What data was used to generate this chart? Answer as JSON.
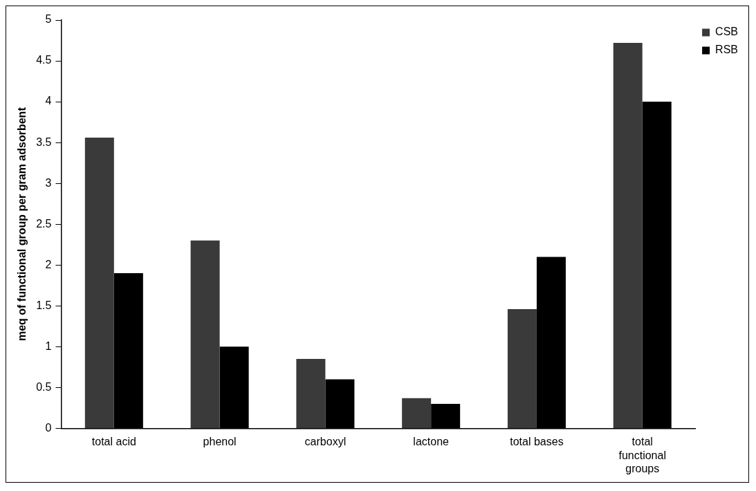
{
  "chart_data": {
    "type": "bar",
    "ylabel": "meq of functional group per gram adsorbent",
    "categories": [
      "total acid",
      "phenol",
      "carboxyl",
      "lactone",
      "total bases",
      "total functional groups"
    ],
    "series": [
      {
        "name": "CSB",
        "color": "#3a3a3a",
        "values": [
          3.56,
          2.3,
          0.85,
          0.37,
          1.46,
          4.72
        ]
      },
      {
        "name": "RSB",
        "color": "#000000",
        "values": [
          1.9,
          1.0,
          0.6,
          0.3,
          2.1,
          4.0
        ]
      }
    ],
    "ylim": [
      0,
      5
    ],
    "yticks": [
      0,
      0.5,
      1,
      1.5,
      2,
      2.5,
      3,
      3.5,
      4,
      4.5,
      5
    ],
    "grid": false,
    "legend": "top right"
  }
}
